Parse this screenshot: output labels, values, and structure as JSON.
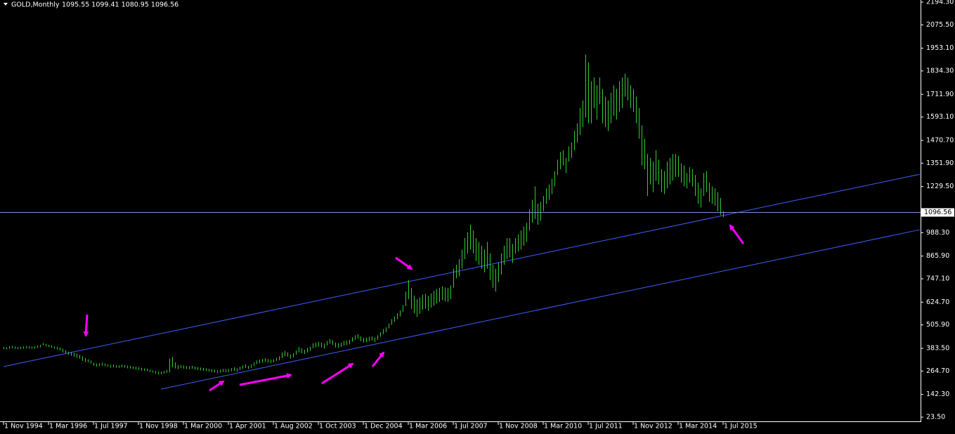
{
  "chart_data": {
    "type": "ohlc",
    "title": "GOLD,Monthly",
    "quote": "1095.55 1099.41 1080.95 1096.56",
    "color": "#33cc33",
    "categories": [
      "1 Nov 1994",
      null,
      null,
      null,
      null,
      null,
      null,
      null,
      null,
      null,
      null,
      null,
      null,
      null,
      null,
      null,
      "1 Mar 1996",
      null,
      null,
      null,
      null,
      null,
      null,
      null,
      null,
      null,
      null,
      null,
      null,
      null,
      null,
      null,
      "1 Jul 1997",
      null,
      null,
      null,
      null,
      null,
      null,
      null,
      null,
      null,
      null,
      null,
      null,
      null,
      null,
      null,
      "1 Nov 1998",
      null,
      null,
      null,
      null,
      null,
      null,
      null,
      null,
      null,
      null,
      null,
      null,
      null,
      null,
      null,
      "1 Mar 2000",
      null,
      null,
      null,
      null,
      null,
      null,
      null,
      null,
      null,
      null,
      null,
      null,
      null,
      null,
      null,
      "1 Apr 2001",
      null,
      null,
      null,
      null,
      null,
      null,
      null,
      null,
      null,
      null,
      null,
      null,
      null,
      null,
      null,
      "1 Aug 2002",
      null,
      null,
      null,
      null,
      null,
      null,
      null,
      null,
      null,
      null,
      null,
      null,
      null,
      null,
      null,
      "1 Oct 2003",
      null,
      null,
      null,
      null,
      null,
      null,
      null,
      null,
      null,
      null,
      null,
      null,
      null,
      null,
      null,
      "1 Dec 2004",
      null,
      null,
      null,
      null,
      null,
      null,
      null,
      null,
      null,
      null,
      null,
      null,
      null,
      null,
      null,
      "1 Mar 2006",
      null,
      null,
      null,
      null,
      null,
      null,
      null,
      null,
      null,
      null,
      null,
      null,
      null,
      null,
      null,
      "1 Jul 2007",
      null,
      null,
      null,
      null,
      null,
      null,
      null,
      null,
      null,
      null,
      null,
      null,
      null,
      null,
      null,
      "1 Nov 2008",
      null,
      null,
      null,
      null,
      null,
      null,
      null,
      null,
      null,
      null,
      null,
      null,
      null,
      null,
      null,
      "1 Mar 2010",
      null,
      null,
      null,
      null,
      null,
      null,
      null,
      null,
      null,
      null,
      null,
      null,
      null,
      null,
      null,
      "1 Jul 2011",
      null,
      null,
      null,
      null,
      null,
      null,
      null,
      null,
      null,
      null,
      null,
      null,
      null,
      null,
      null,
      "1 Nov 2012",
      null,
      null,
      null,
      null,
      null,
      null,
      null,
      null,
      null,
      null,
      null,
      null,
      null,
      null,
      null,
      "1 Mar 2014",
      null,
      null,
      null,
      null,
      null,
      null,
      null,
      null,
      null,
      null,
      null,
      null,
      null,
      null,
      null,
      "1 Jul 2015"
    ],
    "high": [
      391,
      389,
      394,
      396,
      393,
      391,
      392,
      394,
      396,
      395,
      393,
      394,
      398,
      401,
      411,
      406,
      402,
      398,
      394,
      392,
      388,
      382,
      374,
      366,
      365,
      360,
      356,
      350,
      342,
      332,
      326,
      320,
      308,
      304,
      305,
      308,
      304,
      300,
      297,
      299,
      296,
      295,
      298,
      296,
      293,
      291,
      289,
      288,
      285,
      281,
      279,
      277,
      273,
      268,
      265,
      262,
      262,
      265,
      270,
      330,
      338,
      310,
      296,
      296,
      294,
      291,
      290,
      292,
      288,
      286,
      283,
      281,
      279,
      277,
      275,
      272,
      270,
      272,
      276,
      274,
      276,
      280,
      284,
      279,
      287,
      294,
      300,
      292,
      300,
      310,
      320,
      325,
      328,
      332,
      327,
      324,
      326,
      334,
      342,
      362,
      370,
      362,
      352,
      358,
      372,
      390,
      384,
      376,
      386,
      392,
      410,
      414,
      418,
      414,
      408,
      422,
      432,
      426,
      414,
      410,
      414,
      422,
      424,
      428,
      442,
      452,
      458,
      446,
      438,
      440,
      444,
      446,
      440,
      452,
      468,
      484,
      494,
      514,
      536,
      550,
      566,
      582,
      610,
      680,
      740,
      700,
      660,
      640,
      650,
      664,
      668,
      658,
      670,
      684,
      694,
      700,
      708,
      702,
      700,
      712,
      800,
      820,
      850,
      900,
      960,
      990,
      1030,
      1000,
      960,
      940,
      920,
      900,
      940,
      880,
      820,
      800,
      830,
      880,
      920,
      960,
      960,
      930,
      960,
      980,
      1000,
      1020,
      1040,
      1110,
      1160,
      1230,
      1140,
      1150,
      1180,
      1220,
      1240,
      1270,
      1310,
      1370,
      1410,
      1420,
      1380,
      1440,
      1460,
      1520,
      1560,
      1640,
      1680,
      1920,
      1880,
      1780,
      1800,
      1760,
      1800,
      1740,
      1700,
      1680,
      1720,
      1760,
      1740,
      1780,
      1800,
      1820,
      1800,
      1760,
      1740,
      1700,
      1640,
      1550,
      1480,
      1400,
      1380,
      1360,
      1420,
      1370,
      1320,
      1310,
      1360,
      1380,
      1400,
      1400,
      1390,
      1350,
      1340,
      1300,
      1330,
      1320,
      1290,
      1250,
      1220,
      1300,
      1310,
      1250,
      1230,
      1220,
      1200,
      1170,
      1100
    ],
    "low": [
      379,
      377,
      382,
      384,
      381,
      379,
      380,
      382,
      384,
      383,
      381,
      382,
      386,
      389,
      399,
      394,
      390,
      386,
      382,
      378,
      372,
      362,
      356,
      350,
      345,
      340,
      334,
      330,
      318,
      312,
      310,
      304,
      292,
      288,
      291,
      292,
      290,
      288,
      283,
      285,
      282,
      281,
      284,
      282,
      279,
      277,
      275,
      272,
      271,
      267,
      265,
      263,
      259,
      256,
      251,
      248,
      248,
      251,
      255,
      258,
      284,
      278,
      274,
      280,
      278,
      275,
      274,
      276,
      272,
      270,
      268,
      266,
      264,
      262,
      260,
      257,
      255,
      256,
      260,
      258,
      260,
      264,
      266,
      262,
      270,
      276,
      281,
      275,
      281,
      291,
      301,
      306,
      309,
      313,
      309,
      306,
      310,
      318,
      322,
      332,
      342,
      340,
      330,
      336,
      350,
      362,
      358,
      354,
      362,
      370,
      384,
      388,
      392,
      388,
      382,
      398,
      408,
      400,
      388,
      386,
      390,
      398,
      400,
      404,
      418,
      428,
      434,
      420,
      414,
      416,
      420,
      424,
      416,
      428,
      444,
      458,
      468,
      488,
      506,
      522,
      536,
      550,
      574,
      604,
      640,
      590,
      566,
      548,
      564,
      586,
      590,
      580,
      596,
      606,
      618,
      626,
      636,
      630,
      626,
      640,
      700,
      750,
      760,
      800,
      850,
      880,
      900,
      880,
      840,
      820,
      800,
      780,
      800,
      740,
      700,
      680,
      730,
      770,
      820,
      850,
      860,
      830,
      880,
      890,
      900,
      920,
      940,
      1000,
      1040,
      1060,
      1030,
      1050,
      1100,
      1140,
      1160,
      1190,
      1230,
      1290,
      1320,
      1340,
      1300,
      1360,
      1380,
      1420,
      1460,
      1500,
      1540,
      1590,
      1560,
      1560,
      1640,
      1580,
      1660,
      1560,
      1540,
      1520,
      1560,
      1600,
      1580,
      1620,
      1640,
      1700,
      1680,
      1640,
      1620,
      1560,
      1480,
      1340,
      1320,
      1180,
      1240,
      1200,
      1260,
      1240,
      1200,
      1190,
      1220,
      1240,
      1260,
      1280,
      1280,
      1250,
      1230,
      1220,
      1250,
      1230,
      1180,
      1140,
      1120,
      1180,
      1200,
      1150,
      1140,
      1130,
      1100,
      1080,
      1070
    ],
    "ylim": [
      1.5,
      2205.3
    ],
    "yticks": [
      {
        "value": 23.5,
        "label": "23.50"
      },
      {
        "value": 142.3,
        "label": "142.30"
      },
      {
        "value": 264.7,
        "label": "264.70"
      },
      {
        "value": 383.5,
        "label": "383.50"
      },
      {
        "value": 505.9,
        "label": "505.90"
      },
      {
        "value": 624.7,
        "label": "624.70"
      },
      {
        "value": 747.1,
        "label": "747.10"
      },
      {
        "value": 865.9,
        "label": "865.90"
      },
      {
        "value": 988.3,
        "label": "988.30"
      },
      {
        "value": 1229.5,
        "label": "1229.50"
      },
      {
        "value": 1351.9,
        "label": "1351.90"
      },
      {
        "value": 1470.7,
        "label": "1470.70"
      },
      {
        "value": 1593.1,
        "label": "1593.10"
      },
      {
        "value": 1711.9,
        "label": "1711.90"
      },
      {
        "value": 1834.3,
        "label": "1834.30"
      },
      {
        "value": 1953.1,
        "label": "1953.10"
      },
      {
        "value": 2075.5,
        "label": "2075.50"
      },
      {
        "value": 2194.3,
        "label": "2194.30"
      }
    ],
    "last_price": {
      "value": 1096.56,
      "label": "1096.56",
      "color": "#7f8fd8"
    },
    "trendlines": [
      {
        "x": [
          0,
          326
        ],
        "y": [
          288,
          1294
        ],
        "color": "#3f5fff"
      },
      {
        "x": [
          56,
          326
        ],
        "y": [
          170,
          1004
        ],
        "color": "#3f5fff"
      }
    ],
    "grid": false
  }
}
